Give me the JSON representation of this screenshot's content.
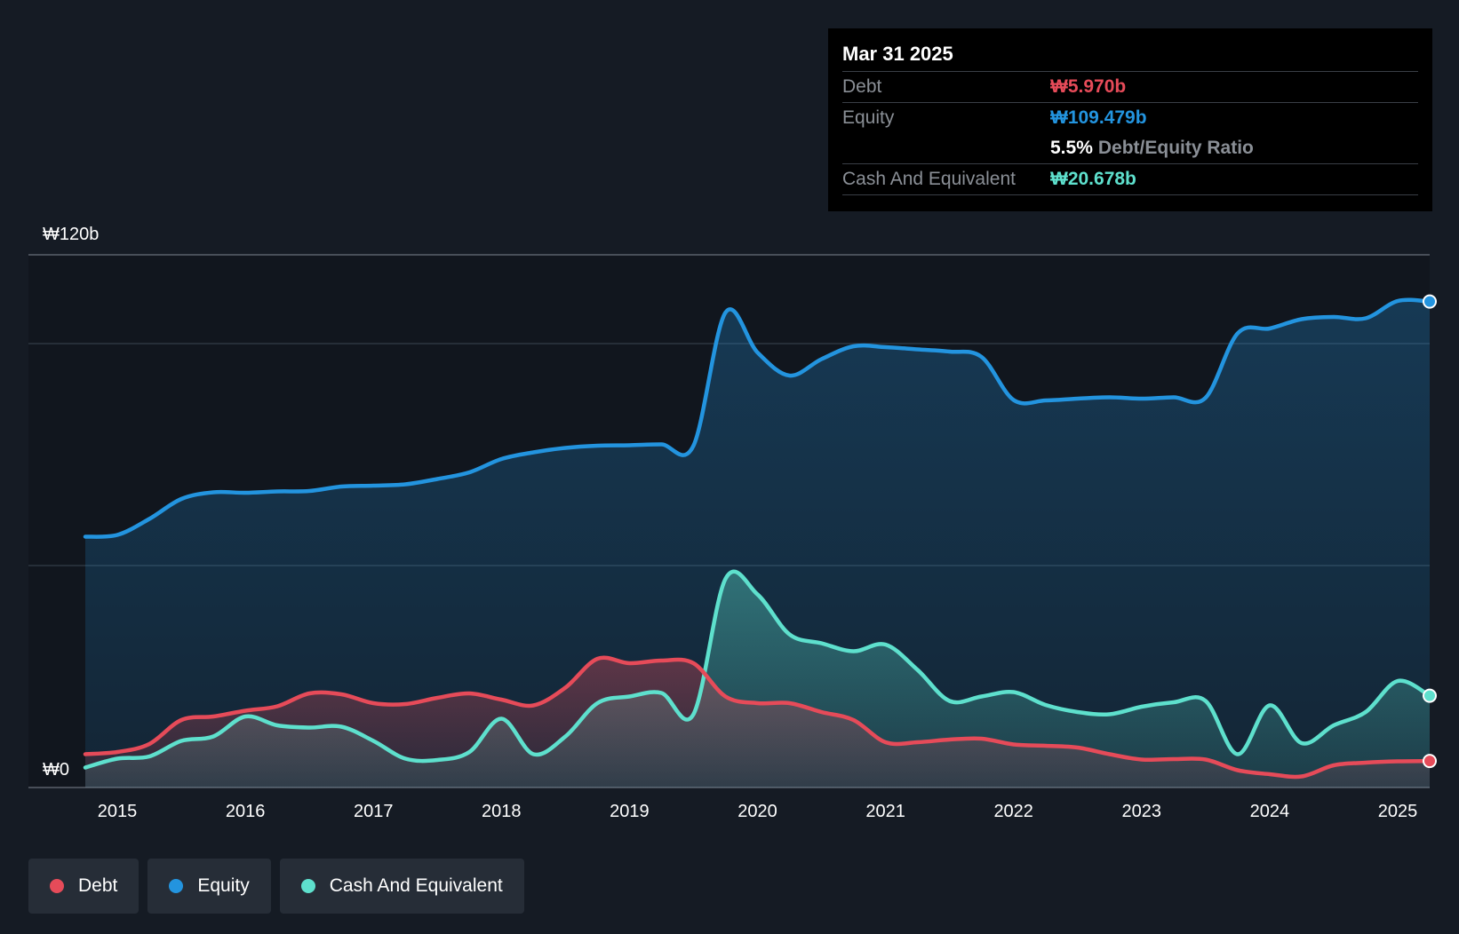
{
  "chart_data": {
    "type": "area",
    "currency_symbol": "₩",
    "y_axis": {
      "min": 0,
      "max": 120,
      "unit": "b",
      "labels": [
        "₩120b",
        "₩0"
      ],
      "gridlines": [
        0,
        50,
        100,
        120
      ]
    },
    "x_axis": {
      "ticks": [
        "2015",
        "2016",
        "2017",
        "2018",
        "2019",
        "2020",
        "2021",
        "2022",
        "2023",
        "2024",
        "2025"
      ],
      "range": [
        2014.7,
        2025.25
      ]
    },
    "series": [
      {
        "name": "Equity",
        "color": "#2394df",
        "points": [
          [
            2014.75,
            56.5
          ],
          [
            2015.0,
            56.9
          ],
          [
            2015.25,
            60.5
          ],
          [
            2015.5,
            65.0
          ],
          [
            2015.75,
            66.5
          ],
          [
            2016.0,
            66.4
          ],
          [
            2016.25,
            66.7
          ],
          [
            2016.5,
            66.8
          ],
          [
            2016.75,
            67.8
          ],
          [
            2017.0,
            68.0
          ],
          [
            2017.25,
            68.3
          ],
          [
            2017.5,
            69.5
          ],
          [
            2017.75,
            71.0
          ],
          [
            2018.0,
            74.0
          ],
          [
            2018.25,
            75.5
          ],
          [
            2018.5,
            76.5
          ],
          [
            2018.75,
            77.0
          ],
          [
            2019.0,
            77.1
          ],
          [
            2019.25,
            77.3
          ],
          [
            2019.5,
            77.0
          ],
          [
            2019.75,
            107.0
          ],
          [
            2020.0,
            98.0
          ],
          [
            2020.25,
            92.8
          ],
          [
            2020.5,
            96.5
          ],
          [
            2020.75,
            99.4
          ],
          [
            2021.0,
            99.2
          ],
          [
            2021.25,
            98.7
          ],
          [
            2021.5,
            98.2
          ],
          [
            2021.75,
            97.0
          ],
          [
            2022.0,
            87.3
          ],
          [
            2022.25,
            87.2
          ],
          [
            2022.5,
            87.6
          ],
          [
            2022.75,
            87.9
          ],
          [
            2023.0,
            87.6
          ],
          [
            2023.25,
            87.9
          ],
          [
            2023.5,
            87.8
          ],
          [
            2023.75,
            102.3
          ],
          [
            2024.0,
            103.4
          ],
          [
            2024.25,
            105.5
          ],
          [
            2024.5,
            106.0
          ],
          [
            2024.75,
            105.7
          ],
          [
            2025.0,
            109.6
          ],
          [
            2025.25,
            109.479
          ]
        ]
      },
      {
        "name": "Cash And Equivalent",
        "color": "#5ee0cd",
        "points": [
          [
            2014.75,
            4.5
          ],
          [
            2015.0,
            6.5
          ],
          [
            2015.25,
            7.0
          ],
          [
            2015.5,
            10.5
          ],
          [
            2015.75,
            11.5
          ],
          [
            2016.0,
            16.0
          ],
          [
            2016.25,
            14.0
          ],
          [
            2016.5,
            13.5
          ],
          [
            2016.75,
            13.7
          ],
          [
            2017.0,
            10.5
          ],
          [
            2017.25,
            6.5
          ],
          [
            2017.5,
            6.2
          ],
          [
            2017.75,
            8.0
          ],
          [
            2018.0,
            15.5
          ],
          [
            2018.25,
            7.5
          ],
          [
            2018.5,
            11.5
          ],
          [
            2018.75,
            19.0
          ],
          [
            2019.0,
            20.5
          ],
          [
            2019.25,
            21.3
          ],
          [
            2019.5,
            16.5
          ],
          [
            2019.75,
            47.0
          ],
          [
            2020.0,
            43.5
          ],
          [
            2020.25,
            34.5
          ],
          [
            2020.5,
            32.5
          ],
          [
            2020.75,
            30.7
          ],
          [
            2021.0,
            32.2
          ],
          [
            2021.25,
            26.5
          ],
          [
            2021.5,
            19.5
          ],
          [
            2021.75,
            20.5
          ],
          [
            2022.0,
            21.5
          ],
          [
            2022.25,
            18.6
          ],
          [
            2022.5,
            17.0
          ],
          [
            2022.75,
            16.5
          ],
          [
            2023.0,
            18.2
          ],
          [
            2023.25,
            19.2
          ],
          [
            2023.5,
            19.5
          ],
          [
            2023.75,
            7.5
          ],
          [
            2024.0,
            18.5
          ],
          [
            2024.25,
            10.0
          ],
          [
            2024.5,
            14.0
          ],
          [
            2024.75,
            17.0
          ],
          [
            2025.0,
            24.0
          ],
          [
            2025.25,
            20.678
          ]
        ]
      },
      {
        "name": "Debt",
        "color": "#e64b59",
        "points": [
          [
            2014.75,
            7.5
          ],
          [
            2015.0,
            8.0
          ],
          [
            2015.25,
            9.8
          ],
          [
            2015.5,
            15.2
          ],
          [
            2015.75,
            16.0
          ],
          [
            2016.0,
            17.3
          ],
          [
            2016.25,
            18.3
          ],
          [
            2016.5,
            21.2
          ],
          [
            2016.75,
            21.0
          ],
          [
            2017.0,
            19.0
          ],
          [
            2017.25,
            18.8
          ],
          [
            2017.5,
            20.2
          ],
          [
            2017.75,
            21.2
          ],
          [
            2018.0,
            19.8
          ],
          [
            2018.25,
            18.5
          ],
          [
            2018.5,
            22.5
          ],
          [
            2018.75,
            29.0
          ],
          [
            2019.0,
            28.0
          ],
          [
            2019.25,
            28.6
          ],
          [
            2019.5,
            28.0
          ],
          [
            2019.75,
            20.5
          ],
          [
            2020.0,
            19.0
          ],
          [
            2020.25,
            19.0
          ],
          [
            2020.5,
            17.0
          ],
          [
            2020.75,
            15.2
          ],
          [
            2021.0,
            10.2
          ],
          [
            2021.25,
            10.2
          ],
          [
            2021.5,
            10.8
          ],
          [
            2021.75,
            11.0
          ],
          [
            2022.0,
            9.7
          ],
          [
            2022.25,
            9.4
          ],
          [
            2022.5,
            9.0
          ],
          [
            2022.75,
            7.5
          ],
          [
            2023.0,
            6.3
          ],
          [
            2023.25,
            6.4
          ],
          [
            2023.5,
            6.3
          ],
          [
            2023.75,
            3.9
          ],
          [
            2024.0,
            3.0
          ],
          [
            2024.25,
            2.5
          ],
          [
            2024.5,
            5.0
          ],
          [
            2024.75,
            5.6
          ],
          [
            2025.0,
            5.9
          ],
          [
            2025.25,
            5.97
          ]
        ]
      }
    ]
  },
  "tooltip": {
    "date": "Mar 31 2025",
    "debt_label": "Debt",
    "debt_value": "₩5.970b",
    "equity_label": "Equity",
    "equity_value": "₩109.479b",
    "ratio_value": "5.5%",
    "ratio_label": "Debt/Equity Ratio",
    "cash_label": "Cash And Equivalent",
    "cash_value": "₩20.678b"
  },
  "legend": [
    {
      "label": "Debt",
      "color": "#e64b59"
    },
    {
      "label": "Equity",
      "color": "#2394df"
    },
    {
      "label": "Cash And Equivalent",
      "color": "#5ee0cd"
    }
  ],
  "colors": {
    "background": "#151b24",
    "plot_background": "#11161e",
    "debt": "#e64b59",
    "equity": "#2394df",
    "cash": "#5ee0cd"
  }
}
